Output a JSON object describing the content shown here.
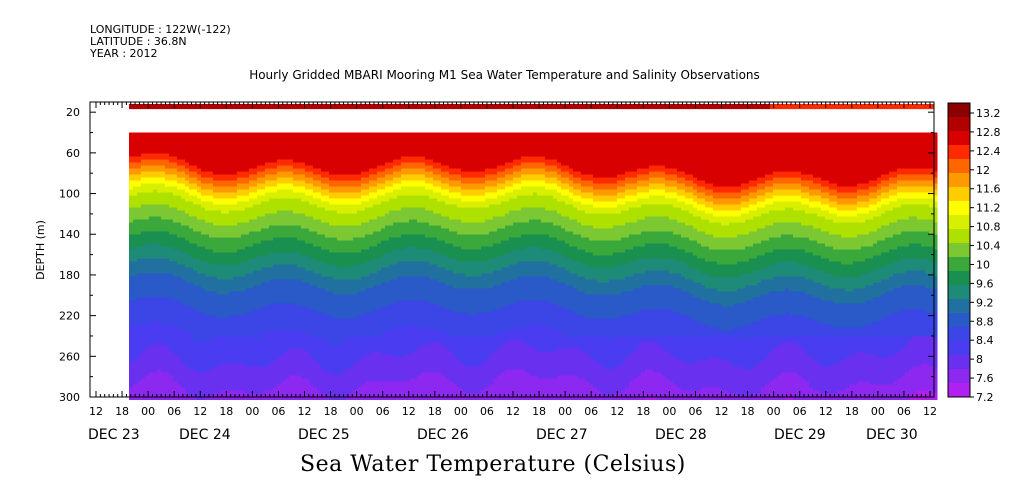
{
  "header": {
    "longitude": "LONGITUDE : 122W(-122)",
    "latitude": "LATITUDE : 36.8N",
    "year": "YEAR : 2012"
  },
  "chart_data": {
    "type": "heatmap",
    "title": "Hourly Gridded MBARI Mooring M1 Sea Water Temperature and Salinity Observations",
    "xlabel": "",
    "ylabel": "DEPTH (m)",
    "footer_label": "Sea Water Temperature (Celsius)",
    "y_ticks": [
      20,
      60,
      100,
      140,
      180,
      220,
      260,
      300
    ],
    "ylim": [
      300,
      10
    ],
    "y_inverted": true,
    "x_hour_ticks": [
      "12",
      "18",
      "00",
      "06",
      "12",
      "18",
      "00",
      "06",
      "12",
      "18",
      "00",
      "06",
      "12",
      "18",
      "00",
      "06",
      "12",
      "18",
      "00",
      "06",
      "12",
      "18",
      "00",
      "06",
      "12",
      "18",
      "00",
      "06",
      "12",
      "18",
      "00",
      "06",
      "12"
    ],
    "x_date_labels": [
      "DEC 23",
      "DEC 24",
      "DEC 25",
      "DEC 26",
      "DEC 27",
      "DEC 28",
      "DEC 29",
      "DEC 30"
    ],
    "x_range": [
      "DEC 23 12:00",
      "DEC 30 12:00"
    ],
    "data_start": "DEC 23 18:00",
    "colorbar": {
      "ticks": [
        "13.2",
        "12.8",
        "12.4",
        "12",
        "11.6",
        "11.2",
        "10.8",
        "10.4",
        "10",
        "9.6",
        "9.2",
        "8.8",
        "8.4",
        "8",
        "7.6",
        "7.2"
      ],
      "colors": [
        "#8b0000",
        "#b00000",
        "#d80000",
        "#ff2a00",
        "#ff6600",
        "#ff9900",
        "#ffcc00",
        "#ffff00",
        "#d8f000",
        "#aee000",
        "#7cc832",
        "#3aa83a",
        "#1a9050",
        "#1e8a78",
        "#2070a0",
        "#2a5ac8",
        "#3c46e6",
        "#4a3cf0",
        "#6a30f0",
        "#8c28f0",
        "#b020f0"
      ],
      "min": 7.2,
      "max": 13.4
    },
    "depths_m": [
      14,
      30,
      60,
      100,
      140,
      180,
      220,
      260,
      295
    ],
    "days": [
      "DEC 23 18:00",
      "DEC 24 06:00",
      "DEC 24 18:00",
      "DEC 25 06:00",
      "DEC 25 18:00",
      "DEC 26 06:00",
      "DEC 26 18:00",
      "DEC 27 06:00",
      "DEC 27 18:00",
      "DEC 28 06:00",
      "DEC 28 18:00",
      "DEC 29 06:00",
      "DEC 29 18:00",
      "DEC 30 06:00",
      "DEC 30 12:00"
    ],
    "surface_temp_C": 13.1,
    "typical_profile_C": {
      "60": 12.8,
      "100": 10.8,
      "140": 9.9,
      "180": 9.0,
      "220": 8.5,
      "260": 8.1,
      "295": 7.7
    }
  }
}
